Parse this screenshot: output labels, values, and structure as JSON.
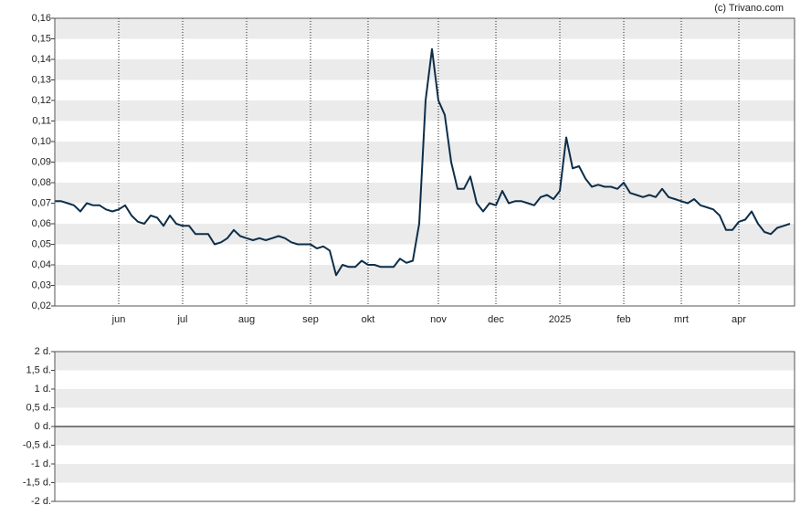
{
  "chart_data": [
    {
      "type": "line",
      "credit": "(c) Trivano.com",
      "color": "#0d2e4a",
      "grid": true,
      "categories": [
        null,
        null,
        null,
        null,
        null,
        null,
        null,
        null,
        null,
        null,
        "jun",
        null,
        null,
        null,
        null,
        null,
        null,
        null,
        null,
        null,
        "jul",
        null,
        null,
        null,
        null,
        null,
        null,
        null,
        null,
        null,
        "aug",
        null,
        null,
        null,
        null,
        null,
        null,
        null,
        null,
        null,
        "sep",
        null,
        null,
        null,
        null,
        null,
        null,
        null,
        null,
        "okt",
        null,
        null,
        null,
        null,
        null,
        null,
        null,
        null,
        null,
        null,
        "nov",
        null,
        null,
        null,
        null,
        null,
        null,
        null,
        null,
        "dec",
        null,
        null,
        null,
        null,
        null,
        null,
        null,
        null,
        null,
        "2025",
        null,
        null,
        null,
        null,
        null,
        null,
        null,
        null,
        null,
        "feb",
        null,
        null,
        null,
        null,
        null,
        null,
        null,
        null,
        "mrt",
        null,
        null,
        null,
        null,
        null,
        null,
        null,
        null,
        "apr",
        null,
        null,
        null,
        null,
        null,
        null,
        null,
        null
      ],
      "values": [
        0.071,
        0.071,
        0.07,
        0.069,
        0.066,
        0.07,
        0.069,
        0.069,
        0.067,
        0.066,
        0.067,
        0.069,
        0.064,
        0.061,
        0.06,
        0.064,
        0.063,
        0.059,
        0.064,
        0.06,
        0.059,
        0.059,
        0.055,
        0.055,
        0.055,
        0.05,
        0.051,
        0.053,
        0.057,
        0.054,
        0.053,
        0.052,
        0.053,
        0.052,
        0.053,
        0.054,
        0.053,
        0.051,
        0.05,
        0.05,
        0.05,
        0.048,
        0.049,
        0.047,
        0.035,
        0.04,
        0.039,
        0.039,
        0.042,
        0.04,
        0.04,
        0.039,
        0.039,
        0.039,
        0.043,
        0.041,
        0.042,
        0.06,
        0.12,
        0.145,
        0.12,
        0.113,
        0.09,
        0.077,
        0.077,
        0.083,
        0.07,
        0.066,
        0.07,
        0.069,
        0.076,
        0.07,
        0.071,
        0.071,
        0.07,
        0.069,
        0.073,
        0.074,
        0.072,
        0.076,
        0.102,
        0.087,
        0.088,
        0.082,
        0.078,
        0.079,
        0.078,
        0.078,
        0.077,
        0.08,
        0.075,
        0.074,
        0.073,
        0.074,
        0.073,
        0.077,
        0.073,
        0.072,
        0.071,
        0.07,
        0.072,
        0.069,
        0.068,
        0.067,
        0.064,
        0.057,
        0.057,
        0.061,
        0.062,
        0.066,
        0.06,
        0.056,
        0.055,
        0.058,
        0.059,
        0.06
      ],
      "ylim": [
        0.02,
        0.16
      ],
      "yticks": [
        {
          "value": 0.02,
          "label": "0,02"
        },
        {
          "value": 0.03,
          "label": "0,03"
        },
        {
          "value": 0.04,
          "label": "0,04"
        },
        {
          "value": 0.05,
          "label": "0,05"
        },
        {
          "value": 0.06,
          "label": "0,06"
        },
        {
          "value": 0.07,
          "label": "0,07"
        },
        {
          "value": 0.08,
          "label": "0,08"
        },
        {
          "value": 0.09,
          "label": "0,09"
        },
        {
          "value": 0.1,
          "label": "0,10"
        },
        {
          "value": 0.11,
          "label": "0,11"
        },
        {
          "value": 0.12,
          "label": "0,12"
        },
        {
          "value": 0.13,
          "label": "0,13"
        },
        {
          "value": 0.14,
          "label": "0,14"
        },
        {
          "value": 0.15,
          "label": "0,15"
        },
        {
          "value": 0.16,
          "label": "0,16"
        }
      ]
    },
    {
      "type": "line",
      "grid": true,
      "ylim": [
        -2,
        2
      ],
      "yticks": [
        {
          "value": -2,
          "label": "-2 d."
        },
        {
          "value": -1.5,
          "label": "-1,5 d."
        },
        {
          "value": -1,
          "label": "-1 d."
        },
        {
          "value": -0.5,
          "label": "-0,5 d."
        },
        {
          "value": 0,
          "label": "0 d."
        },
        {
          "value": 0.5,
          "label": "0,5 d."
        },
        {
          "value": 1,
          "label": "1 d."
        },
        {
          "value": 1.5,
          "label": "1,5 d."
        },
        {
          "value": 2,
          "label": "2 d."
        }
      ]
    }
  ]
}
